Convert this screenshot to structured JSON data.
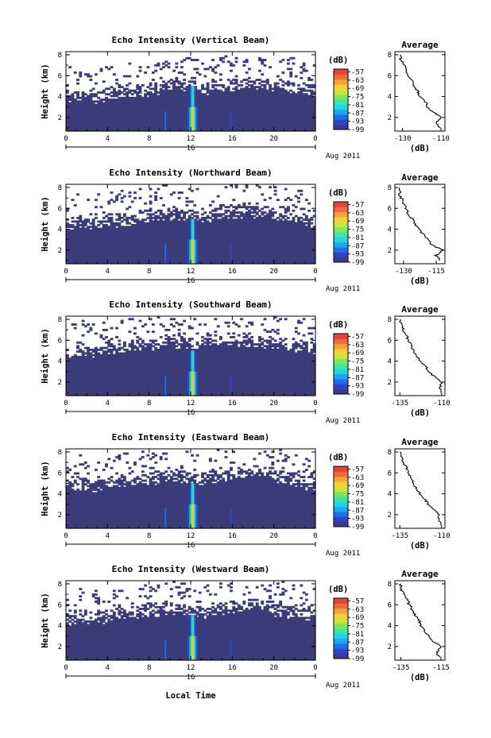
{
  "figure": {
    "xlabel": "Local Time",
    "date_label": "Aug 2011",
    "day_label": "16",
    "ylabel": "Height (km)",
    "cbar_unit": "(dB)",
    "avg_title": "Average",
    "avg_xlabel": "(dB)"
  },
  "colors": {
    "background_echo": "#3a3d7a",
    "colormap": [
      "#3b3b8a",
      "#2f45c8",
      "#1e6fe8",
      "#1aa7f0",
      "#20d6e0",
      "#3de4a4",
      "#7ee65a",
      "#c8e63c",
      "#f4d13a",
      "#f7a13a",
      "#f26a3a",
      "#e8403a"
    ]
  },
  "chart_data": [
    {
      "type": "heatmap",
      "title": "Echo Intensity (Vertical Beam)",
      "x_ticks": [
        "0",
        "4",
        "8",
        "12",
        "16",
        "20",
        "0"
      ],
      "y_ticks": [
        "2",
        "4",
        "6",
        "8"
      ],
      "xlim": [
        0,
        24
      ],
      "ylim": [
        0.7,
        8.3
      ],
      "cbar_ticks": [
        "-57",
        "-63",
        "-69",
        "-75",
        "-81",
        "-87",
        "-93",
        "-99"
      ],
      "cbar_range": [
        -99,
        -55
      ],
      "echo_top_km": [
        3.9,
        4.0,
        3.7,
        3.9,
        4.1,
        4.2,
        4.3,
        4.3,
        4.6,
        4.9,
        5.0,
        4.9,
        4.7,
        4.5,
        4.8,
        4.9,
        4.9,
        5.1,
        5.0,
        4.8,
        4.9,
        4.7,
        4.5,
        4.3
      ],
      "profile": {
        "title": "Average",
        "xlim": [
          -134,
          -108
        ],
        "x_ticks": [
          "-130",
          "-110"
        ],
        "y_ticks": [
          "2",
          "4",
          "6",
          "8"
        ],
        "height_km": [
          1.0,
          1.5,
          2.0,
          2.5,
          3.0,
          3.5,
          4.0,
          4.5,
          5.0,
          5.5,
          6.0,
          6.5,
          7.0,
          7.5,
          8.0
        ],
        "db": [
          -110,
          -113,
          -110,
          -114,
          -117,
          -118,
          -121,
          -122,
          -124,
          -125,
          -127,
          -128,
          -129,
          -131,
          -131
        ]
      }
    },
    {
      "type": "heatmap",
      "title": "Echo Intensity (Northward Beam)",
      "x_ticks": [
        "0",
        "4",
        "8",
        "12",
        "16",
        "20",
        "0"
      ],
      "y_ticks": [
        "2",
        "4",
        "6",
        "8"
      ],
      "xlim": [
        0,
        24
      ],
      "ylim": [
        0.7,
        8.3
      ],
      "cbar_ticks": [
        "-57",
        "-63",
        "-69",
        "-75",
        "-81",
        "-87",
        "-93",
        "-99"
      ],
      "cbar_range": [
        -99,
        -55
      ],
      "echo_top_km": [
        4.3,
        4.5,
        4.3,
        4.4,
        4.6,
        4.8,
        4.8,
        5.0,
        5.2,
        5.3,
        5.3,
        5.2,
        5.1,
        5.0,
        5.4,
        5.4,
        5.5,
        5.6,
        5.5,
        5.4,
        5.2,
        5.0,
        4.8,
        4.6
      ],
      "profile": {
        "title": "Average",
        "xlim": [
          -134,
          -111
        ],
        "x_ticks": [
          "-130",
          "-115"
        ],
        "y_ticks": [
          "2",
          "4",
          "6",
          "8"
        ],
        "height_km": [
          1.0,
          1.5,
          2.0,
          2.5,
          3.0,
          3.5,
          4.0,
          4.5,
          5.0,
          5.5,
          6.0,
          6.5,
          7.0,
          7.5,
          8.0
        ],
        "db": [
          -113,
          -115,
          -112,
          -117,
          -119,
          -121,
          -123,
          -125,
          -126,
          -128,
          -129,
          -130,
          -131,
          -132,
          -132
        ]
      }
    },
    {
      "type": "heatmap",
      "title": "Echo Intensity (Southward Beam)",
      "x_ticks": [
        "0",
        "4",
        "8",
        "12",
        "16",
        "20",
        "0"
      ],
      "y_ticks": [
        "2",
        "4",
        "6",
        "8"
      ],
      "xlim": [
        0,
        24
      ],
      "ylim": [
        0.7,
        8.3
      ],
      "cbar_ticks": [
        "-57",
        "-63",
        "-69",
        "-75",
        "-81",
        "-87",
        "-93",
        "-99"
      ],
      "cbar_range": [
        -99,
        -55
      ],
      "echo_top_km": [
        4.7,
        4.9,
        4.8,
        4.8,
        5.0,
        5.1,
        5.2,
        5.3,
        5.4,
        5.6,
        5.6,
        5.5,
        5.5,
        5.4,
        5.6,
        5.7,
        5.7,
        5.8,
        5.7,
        5.6,
        5.4,
        5.3,
        5.2,
        5.0
      ],
      "profile": {
        "title": "Average",
        "xlim": [
          -138,
          -108
        ],
        "x_ticks": [
          "-135",
          "-110"
        ],
        "y_ticks": [
          "2",
          "4",
          "6",
          "8"
        ],
        "height_km": [
          1.0,
          1.5,
          2.0,
          2.5,
          3.0,
          3.5,
          4.0,
          4.5,
          5.0,
          5.5,
          6.0,
          6.5,
          7.0,
          7.5,
          8.0
        ],
        "db": [
          -110,
          -111,
          -110,
          -114,
          -118,
          -119,
          -123,
          -125,
          -127,
          -128,
          -130,
          -131,
          -133,
          -134,
          -135
        ]
      }
    },
    {
      "type": "heatmap",
      "title": "Echo Intensity (Eastward Beam)",
      "x_ticks": [
        "0",
        "4",
        "8",
        "12",
        "16",
        "20",
        "0"
      ],
      "y_ticks": [
        "2",
        "4",
        "6",
        "8"
      ],
      "xlim": [
        0,
        24
      ],
      "ylim": [
        0.7,
        8.3
      ],
      "cbar_ticks": [
        "-57",
        "-63",
        "-69",
        "-75",
        "-81",
        "-87",
        "-93",
        "-99"
      ],
      "cbar_range": [
        -99,
        -55
      ],
      "echo_top_km": [
        4.6,
        4.7,
        4.6,
        4.7,
        4.9,
        5.0,
        5.1,
        5.2,
        5.3,
        5.5,
        5.5,
        5.4,
        5.3,
        5.2,
        5.5,
        5.6,
        5.6,
        5.8,
        5.7,
        5.6,
        5.4,
        5.2,
        5.0,
        4.8
      ],
      "profile": {
        "title": "Average",
        "xlim": [
          -138,
          -108
        ],
        "x_ticks": [
          "-135",
          "-110"
        ],
        "y_ticks": [
          "2",
          "4",
          "6",
          "8"
        ],
        "height_km": [
          1.0,
          1.5,
          2.0,
          2.5,
          3.0,
          3.5,
          4.0,
          4.5,
          5.0,
          5.5,
          6.0,
          6.5,
          7.0,
          7.5,
          8.0
        ],
        "db": [
          -110,
          -112,
          -111,
          -115,
          -118,
          -120,
          -123,
          -125,
          -127,
          -128,
          -130,
          -131,
          -133,
          -134,
          -135
        ]
      }
    },
    {
      "type": "heatmap",
      "title": "Echo Intensity (Westward Beam)",
      "x_ticks": [
        "0",
        "4",
        "8",
        "12",
        "16",
        "20",
        "0"
      ],
      "y_ticks": [
        "2",
        "4",
        "6",
        "8"
      ],
      "xlim": [
        0,
        24
      ],
      "ylim": [
        0.7,
        8.3
      ],
      "cbar_ticks": [
        "-57",
        "-63",
        "-69",
        "-75",
        "-81",
        "-87",
        "-93",
        "-99"
      ],
      "cbar_range": [
        -99,
        -55
      ],
      "echo_top_km": [
        4.4,
        4.6,
        4.5,
        4.6,
        4.8,
        5.0,
        5.0,
        5.1,
        5.2,
        5.4,
        5.4,
        5.3,
        5.2,
        5.1,
        5.4,
        5.5,
        5.5,
        5.7,
        5.6,
        5.5,
        5.3,
        5.1,
        4.9,
        4.7
      ],
      "profile": {
        "title": "Average",
        "xlim": [
          -138,
          -113
        ],
        "x_ticks": [
          "-135",
          "-115"
        ],
        "y_ticks": [
          "2",
          "4",
          "6",
          "8"
        ],
        "height_km": [
          1.0,
          1.5,
          2.0,
          2.5,
          3.0,
          3.5,
          4.0,
          4.5,
          5.0,
          5.5,
          6.0,
          6.5,
          7.0,
          7.5,
          8.0
        ],
        "db": [
          -116,
          -117,
          -115,
          -119,
          -121,
          -123,
          -125,
          -126,
          -128,
          -129,
          -131,
          -132,
          -133,
          -135,
          -135
        ]
      }
    }
  ]
}
